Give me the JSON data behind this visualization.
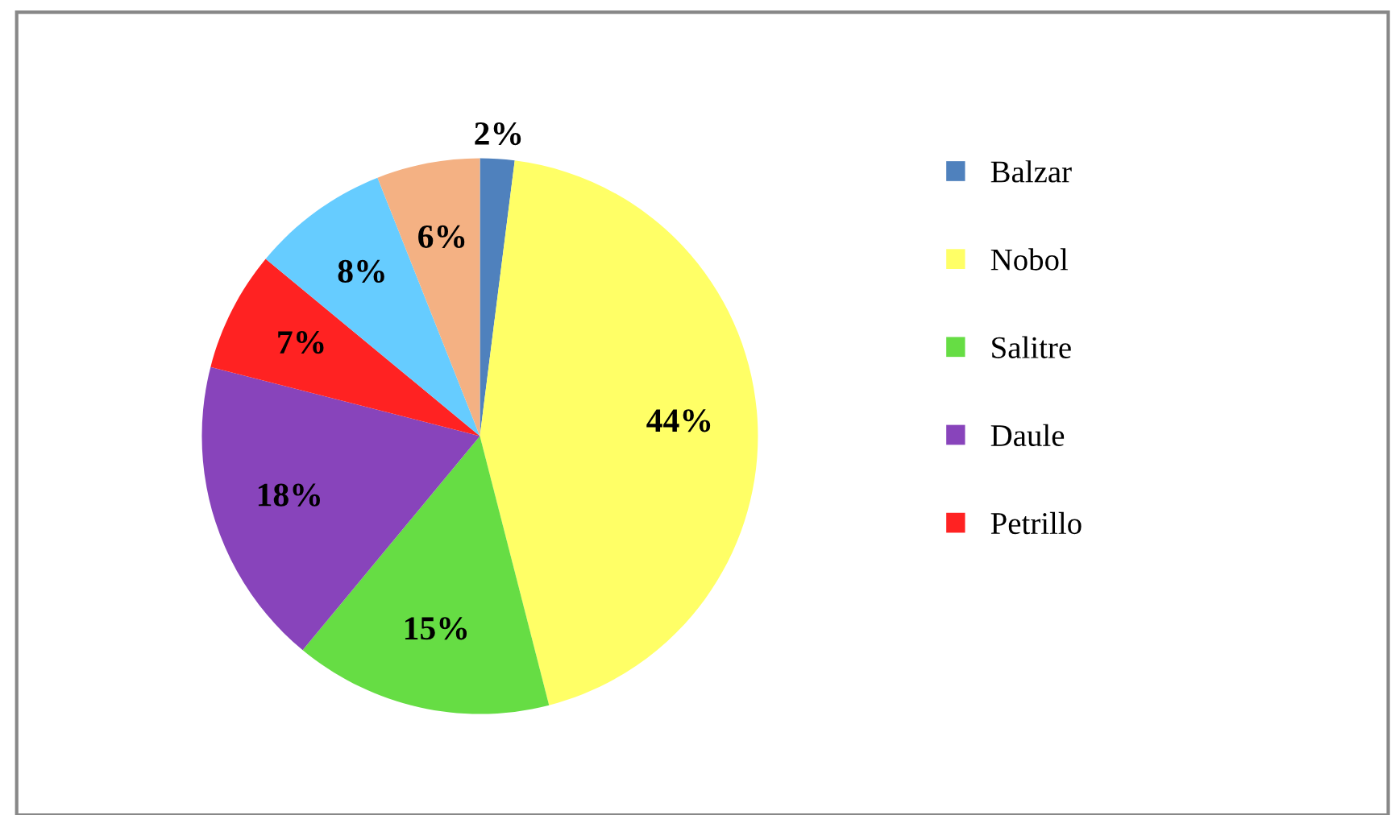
{
  "chart_data": {
    "type": "pie",
    "categories": [
      "Balzar",
      "Nobol",
      "Salitre",
      "Daule",
      "Petrillo",
      null,
      null
    ],
    "values": [
      2,
      44,
      15,
      18,
      7,
      8,
      6
    ],
    "colors": [
      "#4f81bd",
      "#ffff66",
      "#66dd44",
      "#8844bb",
      "#ff2222",
      "#66ccff",
      "#f4b183"
    ],
    "value_labels": [
      "2%",
      "44%",
      "15%",
      "18%",
      "7%",
      "8%",
      "6%"
    ],
    "legend": "right"
  }
}
